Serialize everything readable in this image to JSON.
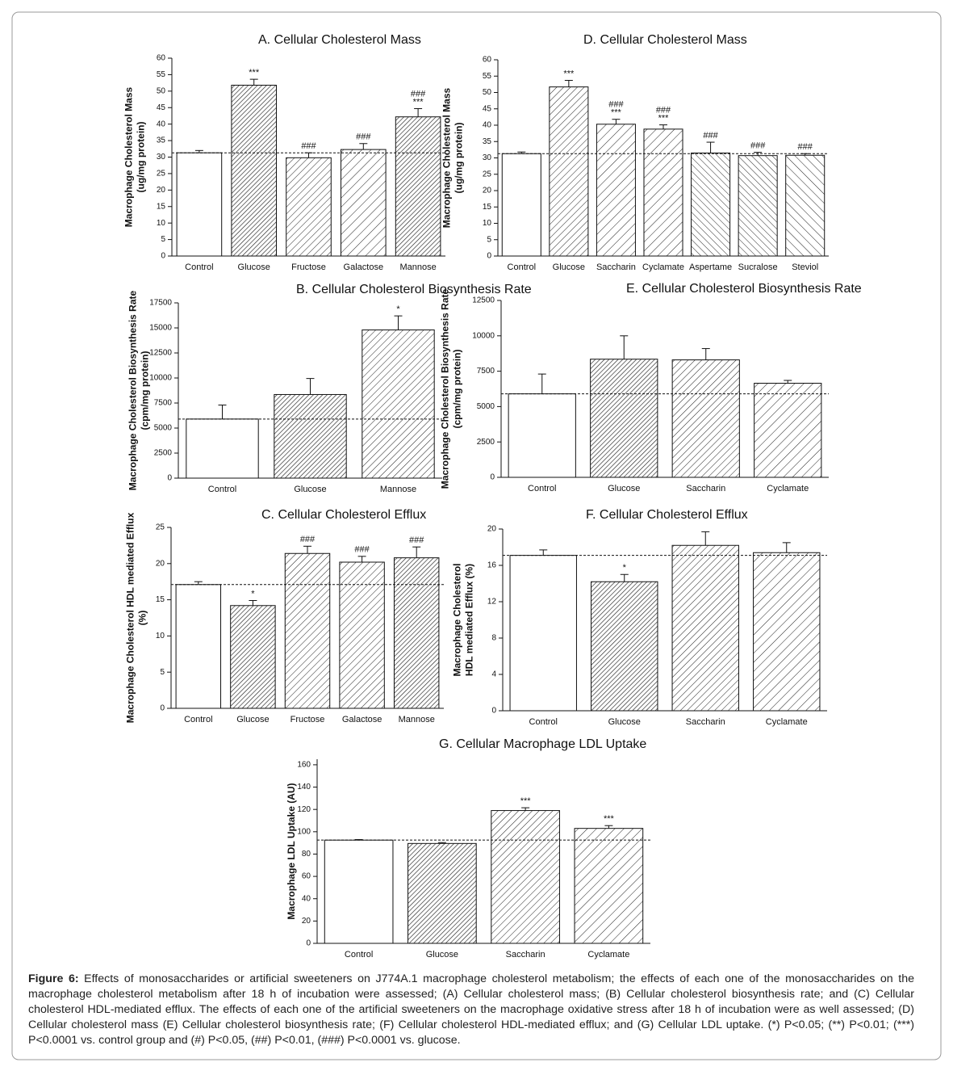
{
  "chart_data": [
    {
      "type": "bar",
      "title": "A. Cellular Cholesterol Mass",
      "ylabel": [
        "Macrophage Cholesterol Mass",
        "(ug/mg protein)"
      ],
      "categories": [
        "Control",
        "Glucose",
        "Fructose",
        "Galactose",
        "Mannose"
      ],
      "values": [
        31.3,
        51.8,
        29.8,
        32.3,
        42.2
      ],
      "errors": [
        0.7,
        1.8,
        1.5,
        1.8,
        2.5
      ],
      "annotations": [
        null,
        [
          "***"
        ],
        [
          "###"
        ],
        [
          "###"
        ],
        [
          "###",
          "***"
        ]
      ],
      "ylim": [
        0,
        60
      ],
      "yticks": [
        0,
        5,
        10,
        15,
        20,
        25,
        30,
        35,
        40,
        45,
        50,
        55,
        60
      ]
    },
    {
      "type": "bar",
      "title": "D. Cellular Cholesterol Mass",
      "ylabel": [
        "Macrophage Cholesterol Mass",
        "(ug/mg protein)"
      ],
      "categories": [
        "Control",
        "Glucose",
        "Saccharin",
        "Cyclamate",
        "Aspertame",
        "Sucralose",
        "Steviol"
      ],
      "values": [
        31.3,
        51.7,
        40.3,
        38.8,
        31.5,
        30.7,
        30.8
      ],
      "errors": [
        0.5,
        2,
        1.5,
        1.3,
        3.3,
        1,
        0.5
      ],
      "annotations": [
        null,
        [
          "***"
        ],
        [
          "###",
          "***"
        ],
        [
          "###",
          "***"
        ],
        [
          "###"
        ],
        [
          "###"
        ],
        [
          "###"
        ]
      ],
      "ylim": [
        0,
        60
      ],
      "yticks": [
        0,
        5,
        10,
        15,
        20,
        25,
        30,
        35,
        40,
        45,
        50,
        55,
        60
      ]
    },
    {
      "type": "bar",
      "title": "B. Cellular Cholesterol Biosynthesis Rate",
      "ylabel": [
        "Macrophage Cholesterol Biosynthesis Rate",
        "(cpm/mg protein)"
      ],
      "categories": [
        "Control",
        "Glucose",
        "Mannose"
      ],
      "values": [
        5900,
        8350,
        14800
      ],
      "errors": [
        1400,
        1600,
        1400
      ],
      "annotations": [
        null,
        null,
        [
          "*"
        ]
      ],
      "ylim": [
        0,
        17500
      ],
      "yticks": [
        0,
        2500,
        5000,
        7500,
        10000,
        12500,
        15000,
        17500
      ]
    },
    {
      "type": "bar",
      "title": "E. Cellular Cholesterol Biosynthesis Rate",
      "ylabel": [
        "Macrophage Cholesterol Biosynthesis Rate",
        "(cpm/mg protein)"
      ],
      "categories": [
        "Control",
        "Glucose",
        "Saccharin",
        "Cyclamate"
      ],
      "values": [
        5900,
        8350,
        8300,
        6650
      ],
      "errors": [
        1400,
        1650,
        800,
        200
      ],
      "ylim": [
        0,
        12500
      ],
      "yticks": [
        0,
        2500,
        5000,
        7500,
        10000,
        12500
      ]
    },
    {
      "type": "bar",
      "title": "C. Cellular Cholesterol Efflux",
      "ylabel": [
        "Macrophage Cholesterol HDL mediated Efflux",
        "(%)"
      ],
      "categories": [
        "Control",
        "Glucose",
        "Fructose",
        "Galactose",
        "Mannose"
      ],
      "values": [
        17.1,
        14.2,
        21.4,
        20.2,
        20.8
      ],
      "errors": [
        0.4,
        0.7,
        1,
        0.8,
        1.5
      ],
      "annotations": [
        null,
        [
          "*"
        ],
        [
          "###"
        ],
        [
          "###"
        ],
        [
          "###"
        ]
      ],
      "ylim": [
        0,
        25
      ],
      "yticks": [
        0,
        5,
        10,
        15,
        20,
        25
      ]
    },
    {
      "type": "bar",
      "title": "F. Cellular Cholesterol Efflux",
      "ylabel": [
        "Macrophage Cholesterol",
        "HDL mediated Efflux (%)"
      ],
      "categories": [
        "Control",
        "Glucose",
        "Saccharin",
        "Cyclamate"
      ],
      "values": [
        17.1,
        14.2,
        18.2,
        17.4
      ],
      "errors": [
        0.6,
        0.8,
        1.5,
        1.1
      ],
      "annotations": [
        null,
        [
          "*"
        ],
        null,
        null
      ],
      "ylim": [
        0,
        20
      ],
      "yticks": [
        0,
        4,
        8,
        12,
        16,
        20
      ]
    },
    {
      "type": "bar",
      "title": "G. Cellular Macrophage LDL Uptake",
      "ylabel": [
        "Macrophage LDL Uptake (AU)"
      ],
      "categories": [
        "Control",
        "Glucose",
        "Saccharin",
        "Cyclamate"
      ],
      "values": [
        92.5,
        89.5,
        119,
        103
      ],
      "errors": [
        0.5,
        0.8,
        2.5,
        2.5
      ],
      "annotations": [
        null,
        null,
        [
          "***"
        ],
        [
          "***"
        ]
      ],
      "ylim": [
        0,
        165
      ],
      "yticks": [
        0,
        20,
        40,
        60,
        80,
        100,
        120,
        140,
        160
      ]
    }
  ],
  "caption": {
    "label": "Figure 6:",
    "text": "Effects of monosaccharides or artificial sweeteners on J774A.1 macrophage cholesterol metabolism; the effects of each one of the monosaccharides on the macrophage cholesterol metabolism after 18 h of incubation were assessed; (A) Cellular cholesterol mass; (B) Cellular cholesterol biosynthesis rate; and (C) Cellular cholesterol HDL-mediated efflux. The effects of each one of the artificial sweeteners on the macrophage oxidative stress after 18 h of incubation were as well assessed; (D) Cellular cholesterol mass (E) Cellular cholesterol biosynthesis rate; (F) Cellular cholesterol HDL-mediated efflux; and (G) Cellular LDL uptake. (*) P<0.05; (**) P<0.01; (***) P<0.0001 vs. control group and (#) P<0.05, (##) P<0.01, (###) P<0.0001 vs. glucose."
  }
}
